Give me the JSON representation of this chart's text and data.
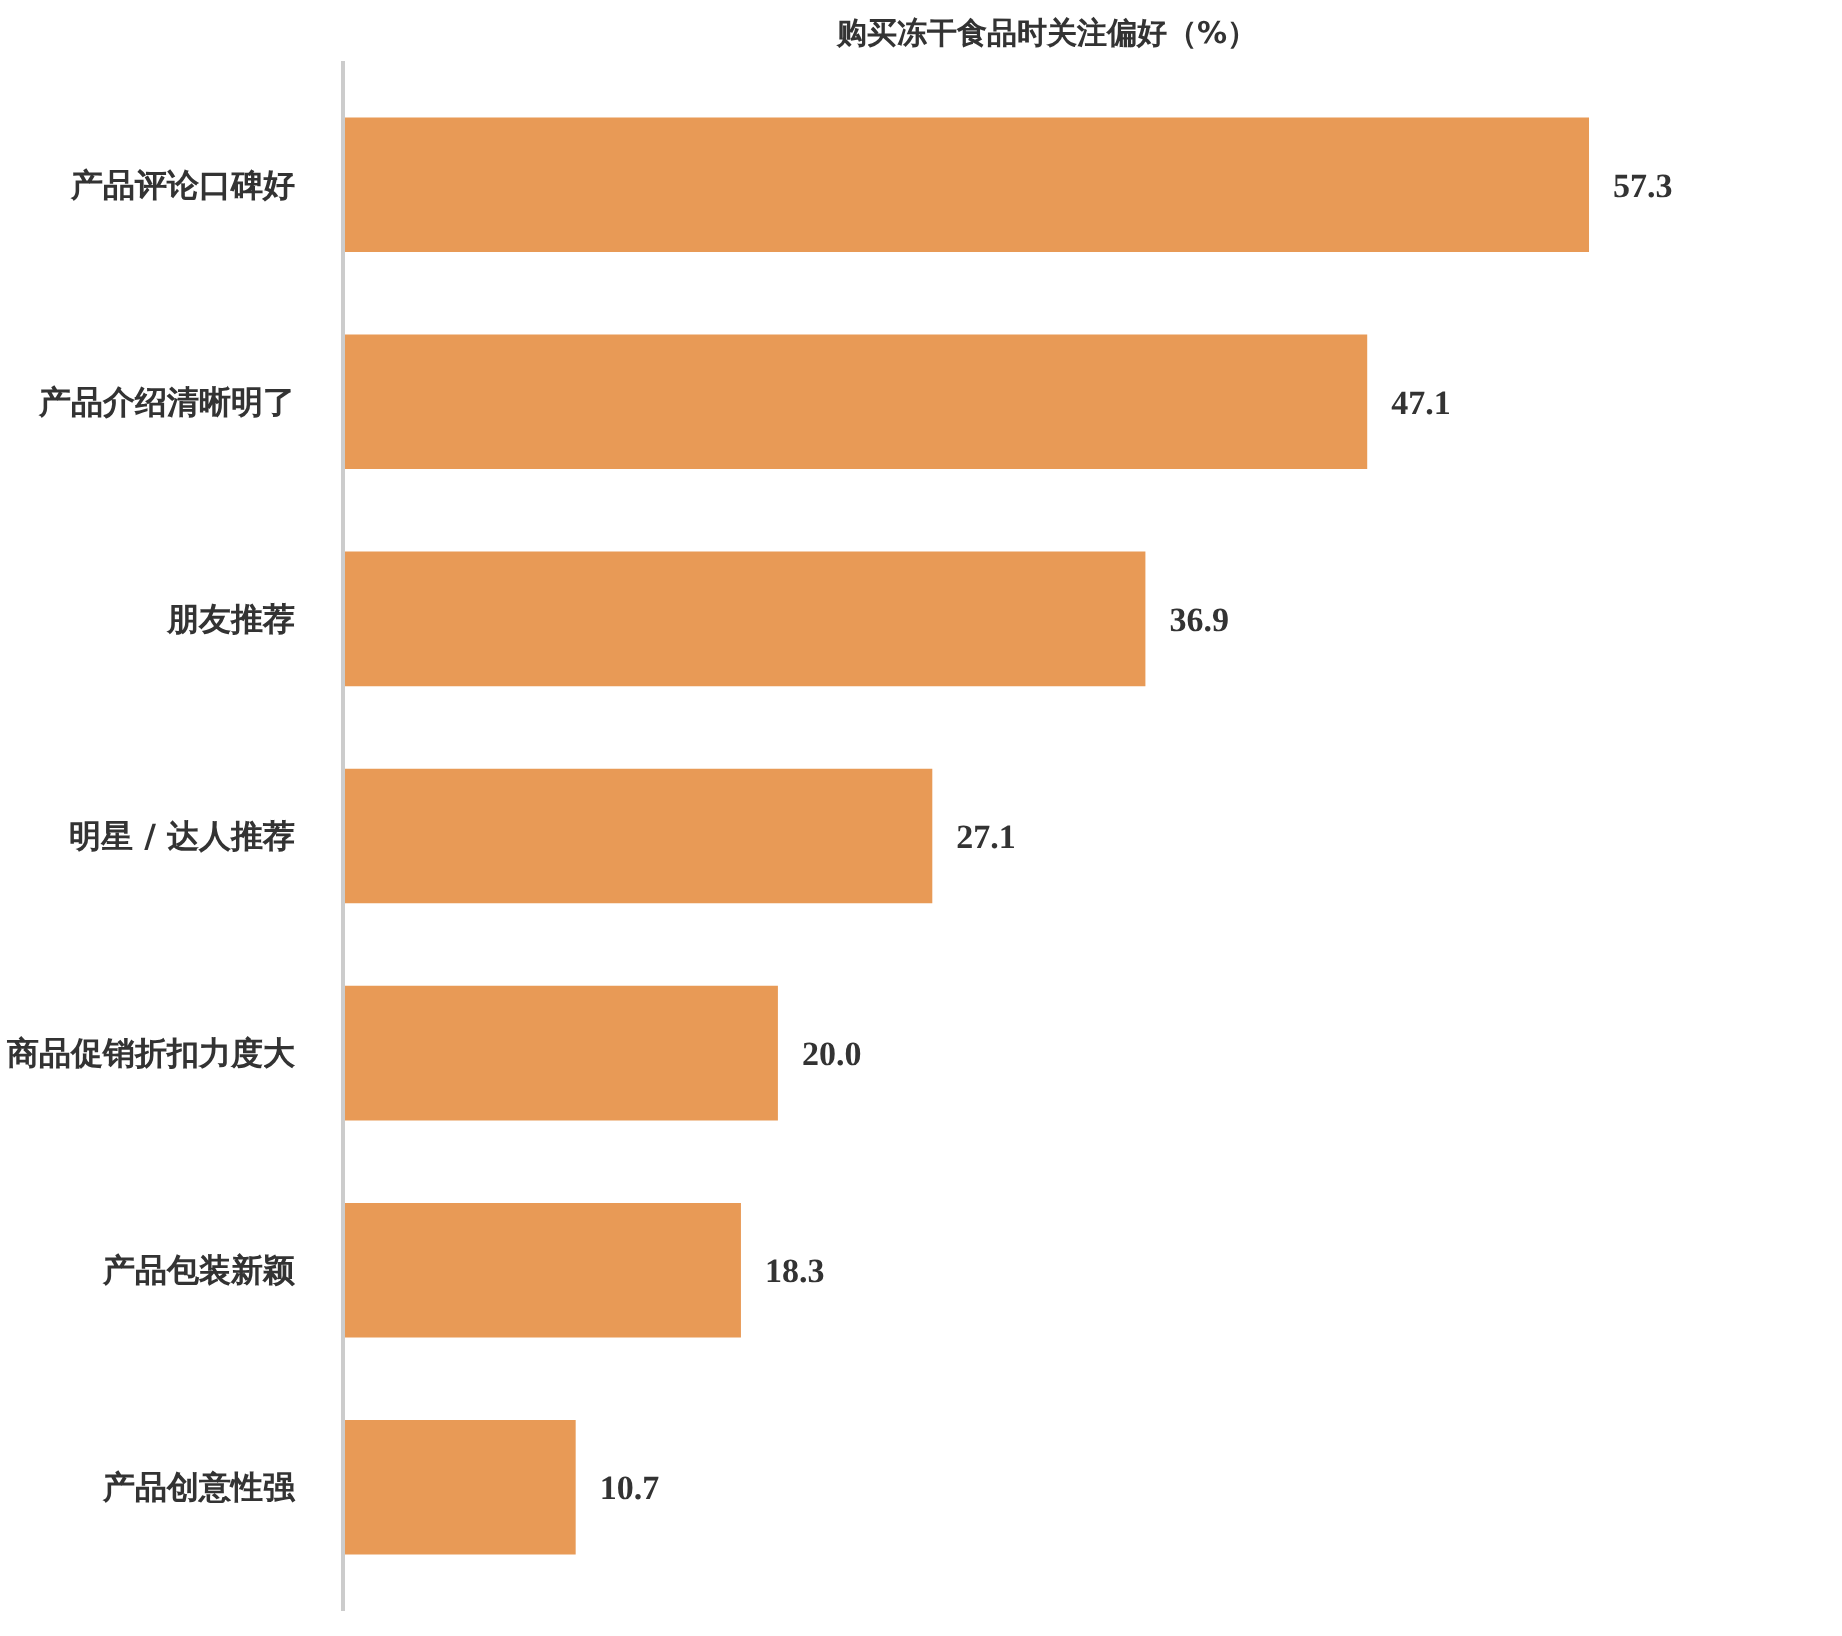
{
  "chart_data": {
    "type": "bar",
    "orientation": "horizontal",
    "title": "购买冻干食品时关注偏好（%）",
    "categories": [
      "产品评论口碑好",
      "产品介绍清晰明了",
      "朋友推荐",
      "明星 / 达人推荐",
      "商品促销折扣力度大",
      "产品包装新颖",
      "产品创意性强"
    ],
    "values": [
      57.3,
      47.1,
      36.9,
      27.1,
      20.0,
      18.3,
      10.7
    ],
    "value_labels": [
      "57.3",
      "47.1",
      "36.9",
      "27.1",
      "20.0",
      "18.3",
      "10.7"
    ],
    "color": "#e89a56",
    "grid": false
  }
}
